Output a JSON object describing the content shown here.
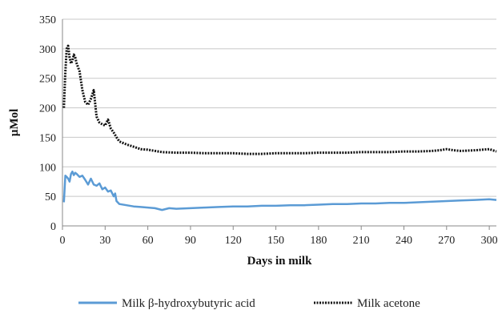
{
  "chart_data": {
    "type": "line",
    "title": "",
    "xlabel": "Days in milk",
    "ylabel": "µMol",
    "xlim": [
      0,
      305
    ],
    "ylim": [
      0,
      350
    ],
    "x_ticks": [
      0,
      30,
      60,
      90,
      120,
      150,
      180,
      210,
      240,
      270,
      300
    ],
    "y_ticks": [
      0,
      50,
      100,
      150,
      200,
      250,
      300,
      350
    ],
    "grid": "horizontal",
    "legend_position": "bottom",
    "series": [
      {
        "name": "Milk β-hydroxybutyric acid",
        "color": "#5b9bd5",
        "style": "solid",
        "points": [
          [
            1,
            40
          ],
          [
            2,
            85
          ],
          [
            3,
            83
          ],
          [
            4,
            80
          ],
          [
            5,
            75
          ],
          [
            6,
            88
          ],
          [
            7,
            92
          ],
          [
            8,
            86
          ],
          [
            9,
            90
          ],
          [
            10,
            88
          ],
          [
            12,
            83
          ],
          [
            14,
            85
          ],
          [
            16,
            78
          ],
          [
            18,
            70
          ],
          [
            20,
            80
          ],
          [
            22,
            70
          ],
          [
            24,
            68
          ],
          [
            26,
            72
          ],
          [
            28,
            62
          ],
          [
            30,
            65
          ],
          [
            32,
            58
          ],
          [
            34,
            60
          ],
          [
            36,
            50
          ],
          [
            37,
            55
          ],
          [
            38,
            42
          ],
          [
            40,
            37
          ],
          [
            45,
            35
          ],
          [
            50,
            33
          ],
          [
            55,
            32
          ],
          [
            60,
            31
          ],
          [
            65,
            30
          ],
          [
            70,
            27
          ],
          [
            75,
            30
          ],
          [
            80,
            29
          ],
          [
            90,
            30
          ],
          [
            100,
            31
          ],
          [
            110,
            32
          ],
          [
            120,
            33
          ],
          [
            130,
            33
          ],
          [
            140,
            34
          ],
          [
            150,
            34
          ],
          [
            160,
            35
          ],
          [
            170,
            35
          ],
          [
            180,
            36
          ],
          [
            190,
            37
          ],
          [
            200,
            37
          ],
          [
            210,
            38
          ],
          [
            220,
            38
          ],
          [
            230,
            39
          ],
          [
            240,
            39
          ],
          [
            250,
            40
          ],
          [
            260,
            41
          ],
          [
            270,
            42
          ],
          [
            280,
            43
          ],
          [
            290,
            44
          ],
          [
            300,
            45
          ],
          [
            305,
            44
          ]
        ]
      },
      {
        "name": "Milk acetone",
        "color": "#111111",
        "style": "dotted",
        "points": [
          [
            1,
            200
          ],
          [
            2,
            260
          ],
          [
            3,
            300
          ],
          [
            4,
            305
          ],
          [
            5,
            285
          ],
          [
            6,
            275
          ],
          [
            7,
            280
          ],
          [
            8,
            290
          ],
          [
            9,
            285
          ],
          [
            10,
            275
          ],
          [
            12,
            262
          ],
          [
            14,
            230
          ],
          [
            16,
            210
          ],
          [
            18,
            205
          ],
          [
            20,
            215
          ],
          [
            22,
            230
          ],
          [
            24,
            185
          ],
          [
            26,
            175
          ],
          [
            28,
            172
          ],
          [
            30,
            170
          ],
          [
            32,
            180
          ],
          [
            34,
            165
          ],
          [
            36,
            158
          ],
          [
            38,
            150
          ],
          [
            40,
            143
          ],
          [
            45,
            138
          ],
          [
            50,
            134
          ],
          [
            55,
            130
          ],
          [
            60,
            129
          ],
          [
            65,
            127
          ],
          [
            70,
            125
          ],
          [
            80,
            124
          ],
          [
            90,
            124
          ],
          [
            100,
            123
          ],
          [
            110,
            123
          ],
          [
            120,
            123
          ],
          [
            130,
            122
          ],
          [
            140,
            122
          ],
          [
            150,
            123
          ],
          [
            160,
            123
          ],
          [
            170,
            123
          ],
          [
            180,
            124
          ],
          [
            190,
            124
          ],
          [
            200,
            124
          ],
          [
            210,
            125
          ],
          [
            220,
            125
          ],
          [
            230,
            125
          ],
          [
            240,
            126
          ],
          [
            250,
            126
          ],
          [
            260,
            127
          ],
          [
            265,
            128
          ],
          [
            270,
            130
          ],
          [
            275,
            128
          ],
          [
            280,
            127
          ],
          [
            290,
            128
          ],
          [
            300,
            130
          ],
          [
            305,
            126
          ]
        ]
      }
    ]
  }
}
